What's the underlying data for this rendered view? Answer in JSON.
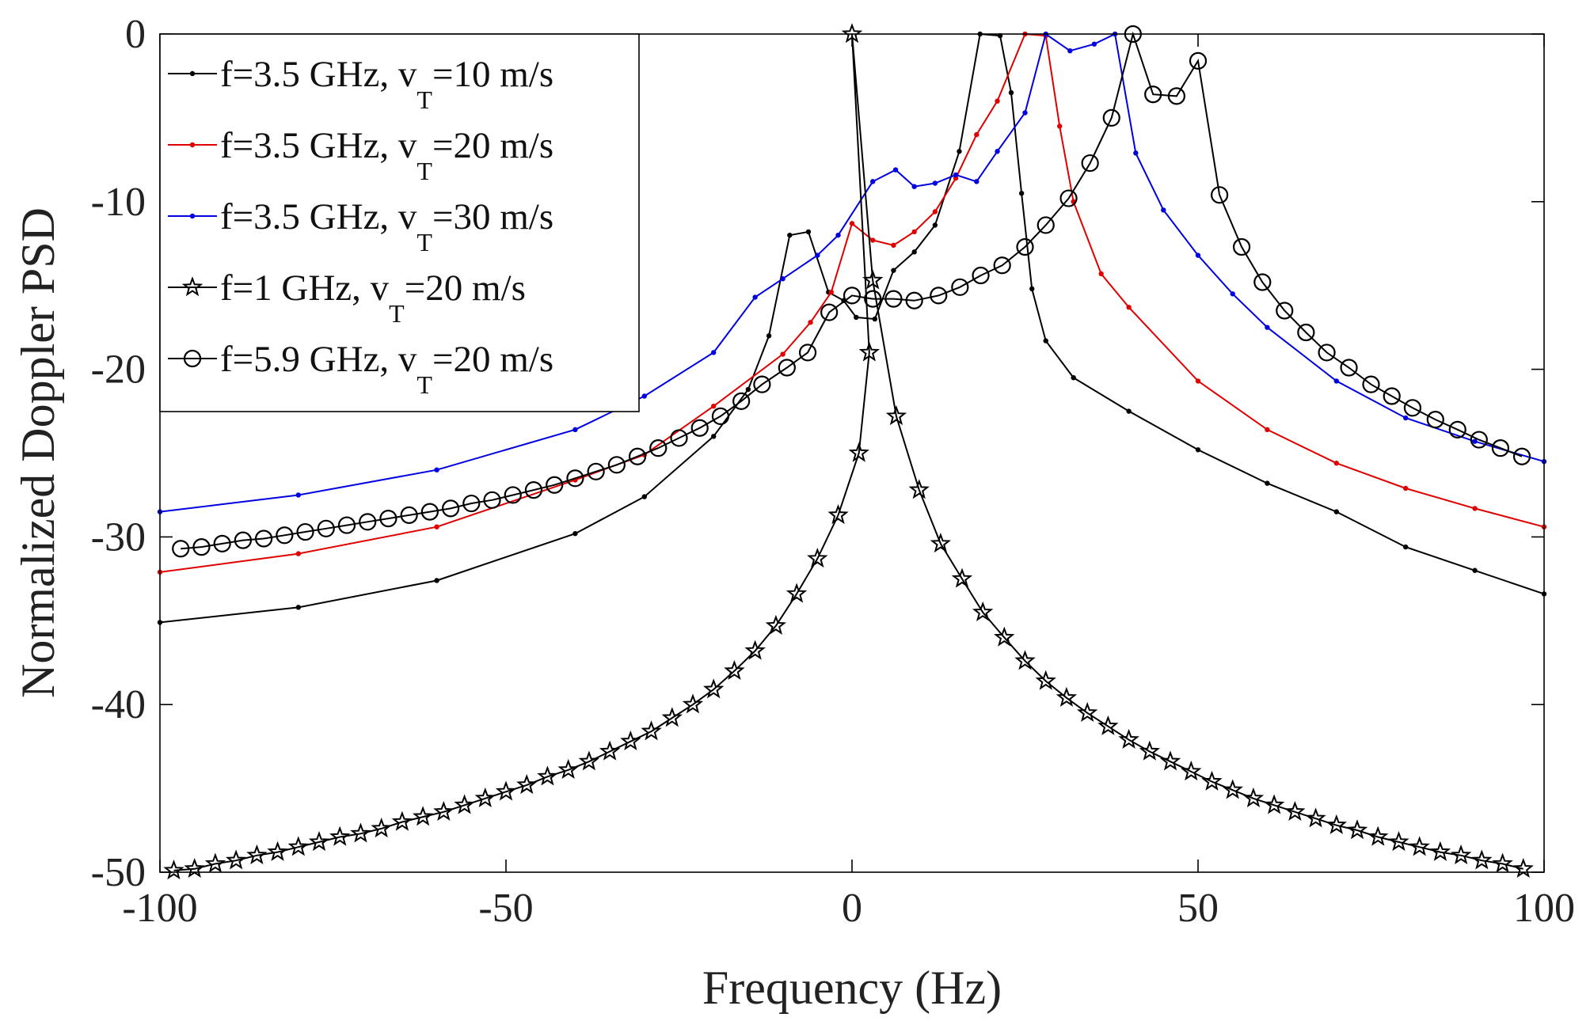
{
  "chart_data": {
    "type": "line",
    "xlabel": "Frequency (Hz)",
    "ylabel": "Normalized Doppler PSD",
    "xlim": [
      -100,
      100
    ],
    "ylim": [
      -50,
      0
    ],
    "xticks": [
      -100,
      -50,
      0,
      50,
      100
    ],
    "xtick_labels": [
      "-100",
      "-50",
      "0",
      "50",
      "100"
    ],
    "yticks": [
      0,
      -10,
      -20,
      -30,
      -40,
      -50
    ],
    "ytick_labels": [
      "0",
      "-10",
      "-20",
      "-30",
      "-40",
      "-50"
    ],
    "grid": false,
    "legend_position": "top-left",
    "series": [
      {
        "name": "f=3.5 GHz, v_T=10 m/s",
        "legend": {
          "main": "f=3.5 GHz, v",
          "sub": "T",
          "rest": "=10 m/s"
        },
        "color": "#000000",
        "marker": "dot",
        "points": [
          [
            -100,
            -35.1
          ],
          [
            -80,
            -34.2
          ],
          [
            -60,
            -32.6
          ],
          [
            -40,
            -29.8
          ],
          [
            -30,
            -27.6
          ],
          [
            -20,
            -24.0
          ],
          [
            -15,
            -21.2
          ],
          [
            -12,
            -18.0
          ],
          [
            -9,
            -12.0
          ],
          [
            -6.3,
            -11.8
          ],
          [
            -3.4,
            -15.4
          ],
          [
            -1.2,
            -15.9
          ],
          [
            0.6,
            -16.9
          ],
          [
            3.3,
            -17.0
          ],
          [
            6,
            -14.1
          ],
          [
            9,
            -13.0
          ],
          [
            12,
            -11.4
          ],
          [
            15.5,
            -7.0
          ],
          [
            18.5,
            0.0
          ],
          [
            21.4,
            -0.1
          ],
          [
            23,
            -3.5
          ],
          [
            24.5,
            -9.5
          ],
          [
            26,
            -15.2
          ],
          [
            28,
            -18.3
          ],
          [
            32,
            -20.5
          ],
          [
            40,
            -22.5
          ],
          [
            50,
            -24.8
          ],
          [
            60,
            -26.8
          ],
          [
            70,
            -28.5
          ],
          [
            80,
            -30.6
          ],
          [
            90,
            -32.0
          ],
          [
            100,
            -33.4
          ]
        ]
      },
      {
        "name": "f=3.5 GHz, v_T=20 m/s",
        "legend": {
          "main": "f=3.5 GHz, v",
          "sub": "T",
          "rest": "=20 m/s"
        },
        "color": "#e00000",
        "marker": "dot",
        "points": [
          [
            -100,
            -32.1
          ],
          [
            -80,
            -31.0
          ],
          [
            -60,
            -29.4
          ],
          [
            -40,
            -26.6
          ],
          [
            -30,
            -25.1
          ],
          [
            -20,
            -22.2
          ],
          [
            -10,
            -19.1
          ],
          [
            -6,
            -17.2
          ],
          [
            -3,
            -15.4
          ],
          [
            0,
            -11.3
          ],
          [
            3,
            -12.3
          ],
          [
            6,
            -12.6
          ],
          [
            9,
            -11.8
          ],
          [
            12,
            -10.6
          ],
          [
            15,
            -8.6
          ],
          [
            18,
            -6.0
          ],
          [
            21,
            -4.0
          ],
          [
            25,
            0.0
          ],
          [
            28,
            -0.1
          ],
          [
            30,
            -5.5
          ],
          [
            32,
            -10.0
          ],
          [
            36,
            -14.3
          ],
          [
            40,
            -16.3
          ],
          [
            50,
            -20.7
          ],
          [
            60,
            -23.6
          ],
          [
            70,
            -25.6
          ],
          [
            80,
            -27.1
          ],
          [
            90,
            -28.3
          ],
          [
            100,
            -29.4
          ]
        ]
      },
      {
        "name": "f=3.5 GHz, v_T=30 m/s",
        "legend": {
          "main": "f=3.5 GHz, v",
          "sub": "T",
          "rest": "=30 m/s"
        },
        "color": "#0000e0",
        "marker": "dot",
        "points": [
          [
            -100,
            -28.5
          ],
          [
            -80,
            -27.5
          ],
          [
            -60,
            -26.0
          ],
          [
            -40,
            -23.6
          ],
          [
            -30,
            -21.6
          ],
          [
            -20,
            -19.0
          ],
          [
            -14,
            -15.7
          ],
          [
            -10,
            -14.6
          ],
          [
            -5,
            -13.2
          ],
          [
            -2,
            -12.0
          ],
          [
            3,
            -8.8
          ],
          [
            6.3,
            -8.1
          ],
          [
            9,
            -9.1
          ],
          [
            12,
            -8.9
          ],
          [
            15,
            -8.4
          ],
          [
            18,
            -8.8
          ],
          [
            21,
            -7.0
          ],
          [
            25,
            -4.7
          ],
          [
            28,
            0.0
          ],
          [
            31.5,
            -1.0
          ],
          [
            35,
            -0.6
          ],
          [
            38,
            0.0
          ],
          [
            41,
            -7.1
          ],
          [
            45,
            -10.5
          ],
          [
            50,
            -13.2
          ],
          [
            55,
            -15.5
          ],
          [
            60,
            -17.5
          ],
          [
            70,
            -20.7
          ],
          [
            80,
            -22.9
          ],
          [
            90,
            -24.3
          ],
          [
            100,
            -25.5
          ]
        ]
      },
      {
        "name": "f=1 GHz, v_T=20 m/s",
        "legend": {
          "main": "f=1 GHz, v",
          "sub": "T",
          "rest": "=20 m/s"
        },
        "color": "#000000",
        "marker": "star",
        "points": [
          [
            -98,
            -49.9
          ],
          [
            -95,
            -49.8
          ],
          [
            -92,
            -49.5
          ],
          [
            -89,
            -49.3
          ],
          [
            -86,
            -49.0
          ],
          [
            -83,
            -48.8
          ],
          [
            -80,
            -48.5
          ],
          [
            -77,
            -48.2
          ],
          [
            -74,
            -47.9
          ],
          [
            -71,
            -47.7
          ],
          [
            -68,
            -47.4
          ],
          [
            -65,
            -47.0
          ],
          [
            -62,
            -46.7
          ],
          [
            -59,
            -46.4
          ],
          [
            -56,
            -46.0
          ],
          [
            -53,
            -45.6
          ],
          [
            -50,
            -45.2
          ],
          [
            -47,
            -44.8
          ],
          [
            -44,
            -44.3
          ],
          [
            -41,
            -43.9
          ],
          [
            -38,
            -43.4
          ],
          [
            -35,
            -42.8
          ],
          [
            -32,
            -42.2
          ],
          [
            -29,
            -41.6
          ],
          [
            -26,
            -40.8
          ],
          [
            -23,
            -40.0
          ],
          [
            -20,
            -39.1
          ],
          [
            -17,
            -38.0
          ],
          [
            -14,
            -36.8
          ],
          [
            -11,
            -35.3
          ],
          [
            -8,
            -33.4
          ],
          [
            -5,
            -31.3
          ],
          [
            -2,
            -28.7
          ],
          [
            1,
            -25.0
          ],
          [
            2.5,
            -19.0
          ],
          [
            0,
            0.0
          ],
          [
            3,
            -14.7
          ],
          [
            6.4,
            -22.8
          ],
          [
            9.7,
            -27.2
          ],
          [
            12.8,
            -30.4
          ],
          [
            15.9,
            -32.5
          ],
          [
            18.9,
            -34.5
          ],
          [
            22,
            -36.0
          ],
          [
            25,
            -37.4
          ],
          [
            28,
            -38.6
          ],
          [
            31,
            -39.6
          ],
          [
            34,
            -40.5
          ],
          [
            37,
            -41.3
          ],
          [
            40,
            -42.1
          ],
          [
            43,
            -42.8
          ],
          [
            46,
            -43.4
          ],
          [
            49,
            -44.0
          ],
          [
            52,
            -44.6
          ],
          [
            55,
            -45.1
          ],
          [
            58,
            -45.6
          ],
          [
            61,
            -46.0
          ],
          [
            64,
            -46.4
          ],
          [
            67,
            -46.8
          ],
          [
            70,
            -47.2
          ],
          [
            73,
            -47.5
          ],
          [
            76,
            -47.9
          ],
          [
            79,
            -48.2
          ],
          [
            82,
            -48.5
          ],
          [
            85,
            -48.8
          ],
          [
            88,
            -49.0
          ],
          [
            91,
            -49.3
          ],
          [
            94,
            -49.5
          ],
          [
            97,
            -49.8
          ]
        ]
      },
      {
        "name": "f=5.9 GHz, v_T=20 m/s",
        "legend": {
          "main": "f=5.9 GHz, v",
          "sub": "T",
          "rest": "=20 m/s"
        },
        "color": "#000000",
        "marker": "circle",
        "points": [
          [
            -97,
            -30.7
          ],
          [
            -94,
            -30.6
          ],
          [
            -91,
            -30.4
          ],
          [
            -88,
            -30.2
          ],
          [
            -85,
            -30.1
          ],
          [
            -82,
            -29.9
          ],
          [
            -79,
            -29.7
          ],
          [
            -76,
            -29.5
          ],
          [
            -73,
            -29.3
          ],
          [
            -70,
            -29.1
          ],
          [
            -67,
            -28.9
          ],
          [
            -64,
            -28.7
          ],
          [
            -61,
            -28.5
          ],
          [
            -58,
            -28.3
          ],
          [
            -55,
            -28.0
          ],
          [
            -52,
            -27.8
          ],
          [
            -49,
            -27.5
          ],
          [
            -46,
            -27.2
          ],
          [
            -43,
            -26.9
          ],
          [
            -40,
            -26.5
          ],
          [
            -37,
            -26.1
          ],
          [
            -34,
            -25.7
          ],
          [
            -31,
            -25.2
          ],
          [
            -28,
            -24.7
          ],
          [
            -25,
            -24.1
          ],
          [
            -22,
            -23.5
          ],
          [
            -19,
            -22.8
          ],
          [
            -16,
            -21.9
          ],
          [
            -13,
            -20.9
          ],
          [
            -9.4,
            -19.9
          ],
          [
            -6.4,
            -19.0
          ],
          [
            -3.3,
            -16.6
          ],
          [
            0,
            -15.6
          ],
          [
            3,
            -15.8
          ],
          [
            6,
            -15.8
          ],
          [
            9,
            -15.9
          ],
          [
            12.5,
            -15.6
          ],
          [
            15.6,
            -15.1
          ],
          [
            18.6,
            -14.4
          ],
          [
            21.7,
            -13.8
          ],
          [
            25,
            -12.7
          ],
          [
            28,
            -11.4
          ],
          [
            31.3,
            -9.8
          ],
          [
            34.4,
            -7.7
          ],
          [
            37.5,
            -5.0
          ],
          [
            40.6,
            0.0
          ],
          [
            43.5,
            -3.6
          ],
          [
            46.9,
            -3.7
          ],
          [
            50,
            -1.6
          ],
          [
            53.1,
            -9.6
          ],
          [
            56.3,
            -12.7
          ],
          [
            59.3,
            -14.8
          ],
          [
            62.5,
            -16.5
          ],
          [
            65.6,
            -17.8
          ],
          [
            68.6,
            -19.0
          ],
          [
            71.8,
            -19.9
          ],
          [
            75,
            -20.9
          ],
          [
            78,
            -21.6
          ],
          [
            81,
            -22.3
          ],
          [
            84.3,
            -23.0
          ],
          [
            87.5,
            -23.6
          ],
          [
            90.6,
            -24.2
          ],
          [
            93.7,
            -24.7
          ],
          [
            96.8,
            -25.2
          ]
        ]
      }
    ]
  }
}
